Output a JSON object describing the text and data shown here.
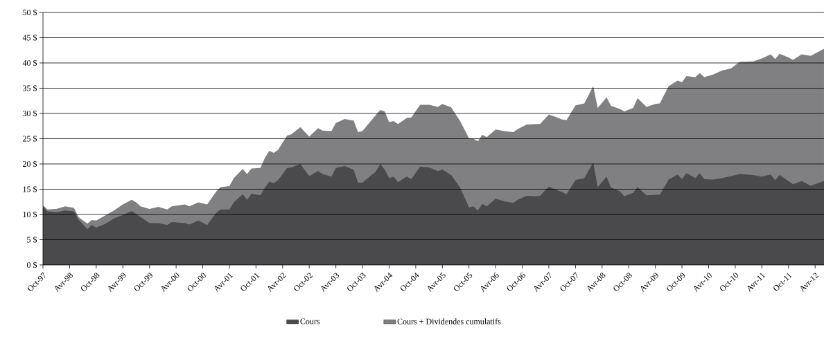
{
  "chart_data": {
    "type": "area",
    "x": [
      "1997-10",
      "1997-11",
      "1998-01",
      "1998-03",
      "1998-05",
      "1998-06",
      "1998-08",
      "1998-09",
      "1998-10",
      "1998-12",
      "1999-02",
      "1999-04",
      "1999-06",
      "1999-07",
      "1999-08",
      "1999-10",
      "1999-12",
      "2000-02",
      "2000-03",
      "2000-06",
      "2000-07",
      "2000-09",
      "2000-11",
      "2001-01",
      "2001-02",
      "2001-04",
      "2001-05",
      "2001-07",
      "2001-08",
      "2001-09",
      "2001-11",
      "2001-12",
      "2002-01",
      "2002-02",
      "2002-03",
      "2002-05",
      "2002-06",
      "2002-08",
      "2002-10",
      "2002-12",
      "2003-01",
      "2003-03",
      "2003-04",
      "2003-06",
      "2003-08",
      "2003-09",
      "2003-10",
      "2004-01",
      "2004-02",
      "2004-03",
      "2004-04",
      "2004-05",
      "2004-06",
      "2004-08",
      "2004-09",
      "2004-11",
      "2005-01",
      "2005-03",
      "2005-04",
      "2005-06",
      "2005-08",
      "2005-10",
      "2005-11",
      "2005-12",
      "2006-01",
      "2006-02",
      "2006-04",
      "2006-06",
      "2006-08",
      "2006-09",
      "2006-11",
      "2007-01",
      "2007-02",
      "2007-04",
      "2007-05",
      "2007-07",
      "2007-08",
      "2007-10",
      "2007-12",
      "2008-02",
      "2008-03",
      "2008-05",
      "2008-06",
      "2008-08",
      "2008-09",
      "2008-11",
      "2008-12",
      "2009-02",
      "2009-04",
      "2009-05",
      "2009-07",
      "2009-09",
      "2009-10",
      "2009-11",
      "2010-01",
      "2010-02",
      "2010-03",
      "2010-05",
      "2010-07",
      "2010-09",
      "2010-11",
      "2011-02",
      "2011-04",
      "2011-06",
      "2011-07",
      "2011-08",
      "2011-10",
      "2011-11",
      "2012-01",
      "2012-03",
      "2012-06"
    ],
    "series": [
      {
        "name": "Cours",
        "color": "#4a4a4c",
        "values": [
          11.6,
          10.6,
          10.4,
          10.8,
          10.6,
          9.0,
          7.1,
          7.9,
          7.4,
          8.1,
          9.2,
          9.9,
          10.7,
          10.1,
          9.5,
          8.3,
          8.3,
          7.9,
          8.5,
          8.3,
          8.0,
          8.8,
          7.9,
          10.3,
          11.0,
          11.0,
          12.4,
          14.0,
          12.9,
          14.1,
          13.8,
          15.3,
          16.5,
          16.2,
          16.8,
          19.2,
          19.3,
          20.0,
          17.6,
          18.6,
          18.0,
          17.5,
          19.2,
          19.6,
          18.9,
          16.3,
          16.3,
          18.5,
          20.0,
          18.9,
          17.2,
          17.5,
          16.4,
          17.5,
          17.0,
          19.5,
          19.3,
          18.6,
          18.9,
          17.8,
          15.3,
          11.4,
          11.6,
          10.8,
          12.1,
          11.6,
          13.1,
          12.6,
          12.3,
          12.9,
          13.7,
          13.6,
          13.7,
          15.5,
          15.1,
          14.4,
          14.0,
          16.8,
          17.2,
          20.3,
          15.4,
          17.5,
          15.3,
          14.6,
          13.6,
          14.3,
          15.4,
          13.8,
          13.9,
          13.9,
          16.9,
          17.9,
          17.0,
          18.2,
          17.2,
          18.2,
          17.0,
          16.9,
          17.2,
          17.6,
          18.0,
          17.8,
          17.5,
          17.9,
          16.8,
          17.8,
          16.6,
          16.0,
          16.6,
          15.7,
          16.6
        ]
      },
      {
        "name": "Cours + Dividendes cumulatifs",
        "color": "#808083",
        "values": [
          11.8,
          11.0,
          11.1,
          11.6,
          11.3,
          9.5,
          8.2,
          8.9,
          8.8,
          9.8,
          10.8,
          12.0,
          12.9,
          12.4,
          11.6,
          11.1,
          11.5,
          11.0,
          11.6,
          12.0,
          11.6,
          12.4,
          12.0,
          14.5,
          15.4,
          15.6,
          17.2,
          19.0,
          18.0,
          19.1,
          19.2,
          21.2,
          22.6,
          22.2,
          22.8,
          25.6,
          25.9,
          27.3,
          25.4,
          27.1,
          26.6,
          26.5,
          28.1,
          28.9,
          28.6,
          26.3,
          26.5,
          29.7,
          30.7,
          30.4,
          28.3,
          28.5,
          27.9,
          29.1,
          29.2,
          31.7,
          31.7,
          31.3,
          31.9,
          31.2,
          28.5,
          25.1,
          25.0,
          24.5,
          25.8,
          25.3,
          26.8,
          26.5,
          26.3,
          26.9,
          27.8,
          27.9,
          27.9,
          29.8,
          29.5,
          28.8,
          28.7,
          31.6,
          32.0,
          35.4,
          31.1,
          33.2,
          31.5,
          30.9,
          30.4,
          31.1,
          33.0,
          31.3,
          31.9,
          32.0,
          35.4,
          36.5,
          36.2,
          37.4,
          37.2,
          38.0,
          37.2,
          37.7,
          38.5,
          38.9,
          40.2,
          40.3,
          40.9,
          41.7,
          40.8,
          41.8,
          41.1,
          40.6,
          41.7,
          41.4,
          42.8
        ]
      }
    ],
    "xlim": [
      "1997-10",
      "2012-06"
    ],
    "xticks": [
      {
        "value": "1997-10",
        "label": "Oct-97"
      },
      {
        "value": "1998-04",
        "label": "Avr-98"
      },
      {
        "value": "1998-10",
        "label": "Oct-98"
      },
      {
        "value": "1999-04",
        "label": "Avr-99"
      },
      {
        "value": "1999-10",
        "label": "Oct-99"
      },
      {
        "value": "2000-04",
        "label": "Avr-00"
      },
      {
        "value": "2000-10",
        "label": "Oct-00"
      },
      {
        "value": "2001-04",
        "label": "Avr-01"
      },
      {
        "value": "2001-10",
        "label": "Oct-01"
      },
      {
        "value": "2002-04",
        "label": "Avr-02"
      },
      {
        "value": "2002-10",
        "label": "Oct-02"
      },
      {
        "value": "2003-04",
        "label": "Avr-03"
      },
      {
        "value": "2003-10",
        "label": "Oct-03"
      },
      {
        "value": "2004-04",
        "label": "Avr-04"
      },
      {
        "value": "2004-10",
        "label": "Oct-04"
      },
      {
        "value": "2005-04",
        "label": "Avr-05"
      },
      {
        "value": "2005-10",
        "label": "Oct-05"
      },
      {
        "value": "2006-04",
        "label": "Avr-06"
      },
      {
        "value": "2006-10",
        "label": "Oct-06"
      },
      {
        "value": "2007-04",
        "label": "Avr-07"
      },
      {
        "value": "2007-10",
        "label": "Oct-07"
      },
      {
        "value": "2008-04",
        "label": "Avr-08"
      },
      {
        "value": "2008-10",
        "label": "Oct-08"
      },
      {
        "value": "2009-04",
        "label": "Avr-09"
      },
      {
        "value": "2009-10",
        "label": "Oct-09"
      },
      {
        "value": "2010-04",
        "label": "Avr-10"
      },
      {
        "value": "2010-10",
        "label": "Oct-10"
      },
      {
        "value": "2011-04",
        "label": "Avr-11"
      },
      {
        "value": "2011-10",
        "label": "Oct-11"
      },
      {
        "value": "2012-04",
        "label": "Avr-12"
      }
    ],
    "ylim": [
      0,
      50
    ],
    "yticks": [
      {
        "value": 0,
        "label": "0 $"
      },
      {
        "value": 5,
        "label": "5 $"
      },
      {
        "value": 10,
        "label": "10 $"
      },
      {
        "value": 15,
        "label": "15 $"
      },
      {
        "value": 20,
        "label": "20 $"
      },
      {
        "value": 25,
        "label": "25 $"
      },
      {
        "value": 30,
        "label": "30 $"
      },
      {
        "value": 35,
        "label": "35 $"
      },
      {
        "value": 40,
        "label": "40 $"
      },
      {
        "value": 45,
        "label": "45 $"
      },
      {
        "value": 50,
        "label": "50 $"
      }
    ],
    "grid": "y",
    "legend": "bottom"
  }
}
